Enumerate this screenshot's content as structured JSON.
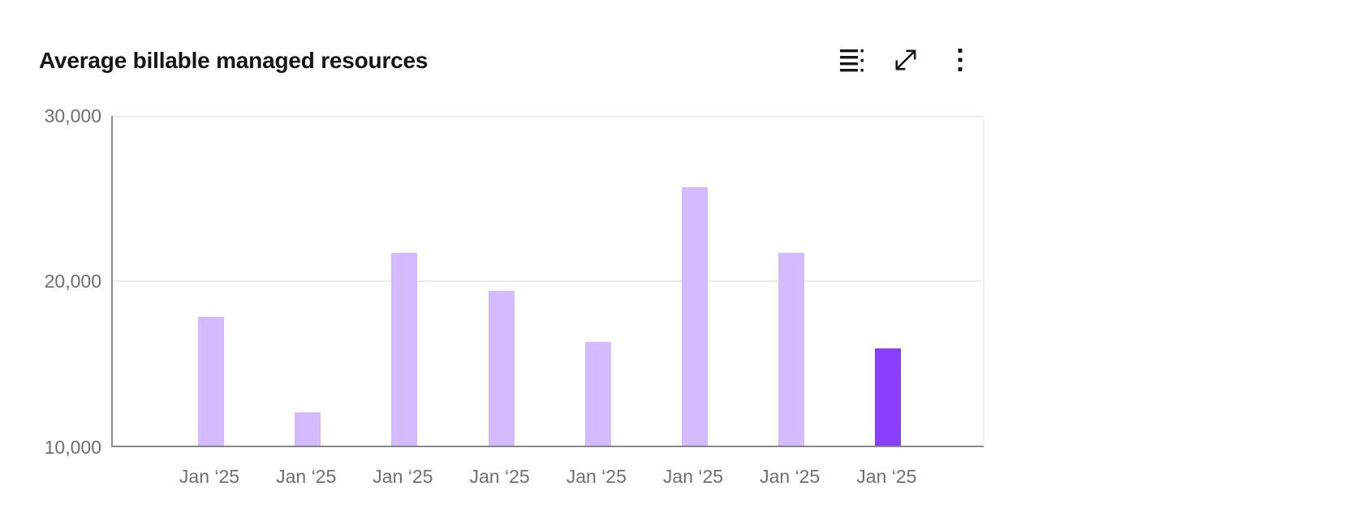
{
  "header": {
    "toolbar_icons": [
      "data-table-icon",
      "maximize-icon",
      "overflow-menu-icon"
    ]
  },
  "chart_data": {
    "type": "bar",
    "title": "Average billable managed resources",
    "categories": [
      "Jan ‘25",
      "Jan ‘25",
      "Jan ‘25",
      "Jan ‘25",
      "Jan ‘25",
      "Jan ‘25",
      "Jan ‘25",
      "Jan ‘25"
    ],
    "values": [
      17800,
      12000,
      21700,
      19400,
      16300,
      25700,
      21700,
      15900
    ],
    "highlighted_index": 7,
    "bar_color": "#d4bbff",
    "highlight_color": "#8a3ffc",
    "xlabel": "",
    "ylabel": "",
    "ylim": [
      10000,
      30000
    ],
    "yticks": [
      "30,000",
      "20,000",
      "10,000"
    ],
    "grid": "horizontal",
    "legend": "none"
  }
}
